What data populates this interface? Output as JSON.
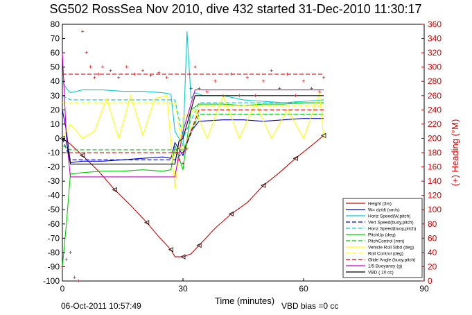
{
  "chart_data": {
    "type": "line",
    "title": "SG502 RossSea Nov 2010, dive 432 started 31-Dec-2010 11:30:17",
    "xlabel": "Time (minutes)",
    "ylabel": "",
    "y2label": "(+) Heading (°M)",
    "xlim": [
      0,
      90
    ],
    "ylim": [
      -100,
      80
    ],
    "y2lim": [
      0,
      360
    ],
    "xticks": [
      "0",
      "30",
      "60",
      "90"
    ],
    "yticks": [
      "-100",
      "-90",
      "-80",
      "-70",
      "-60",
      "-50",
      "-40",
      "-30",
      "-20",
      "-10",
      "0",
      "10",
      "20",
      "30",
      "40",
      "50",
      "60",
      "70",
      "80"
    ],
    "y2ticks": [
      "0",
      "20",
      "40",
      "60",
      "80",
      "100",
      "120",
      "140",
      "160",
      "180",
      "200",
      "220",
      "240",
      "260",
      "280",
      "300",
      "320",
      "340",
      "360"
    ],
    "legend_position": "bottom-right",
    "footer_left": "06-Oct-2011 10:57:49",
    "footer_right": "VBD bias =0 cc",
    "series": [
      {
        "name": "Height (3m)",
        "color": "#cc0000",
        "style": "solid",
        "x": [
          0,
          2,
          5,
          9,
          13,
          17,
          21,
          24,
          27,
          28,
          30,
          32,
          34,
          38,
          42,
          46,
          50,
          54,
          58,
          62,
          65
        ],
        "y": [
          0,
          -4,
          -12,
          -23,
          -36,
          -47,
          -59,
          -69,
          -78,
          -83,
          -83,
          -81,
          -75,
          -63,
          -53,
          -45,
          -33,
          -24,
          -14,
          -5,
          2
        ]
      },
      {
        "name": "W= dz/dt (cm/s)",
        "color": "#0000cc",
        "style": "solid",
        "x": [
          0,
          1,
          2,
          5,
          10,
          15,
          20,
          25,
          27,
          28,
          30,
          32,
          34,
          40,
          45,
          50,
          55,
          60,
          65
        ],
        "y": [
          20,
          5,
          -17,
          -16,
          -16,
          -15,
          -14,
          -13,
          -14,
          -3,
          -12,
          5,
          12,
          13,
          13,
          12,
          13,
          14,
          14
        ]
      },
      {
        "name": "Horiz Speed(W,pitch)",
        "color": "#00cccc",
        "style": "solid",
        "x": [
          0,
          1,
          2,
          5,
          10,
          15,
          20,
          25,
          27,
          28,
          29,
          30,
          31,
          32,
          33,
          35,
          40,
          45,
          50,
          55,
          60,
          65
        ],
        "y": [
          40,
          35,
          32,
          34,
          34,
          33,
          33,
          32,
          31,
          5,
          0,
          -5,
          75,
          28,
          32,
          30,
          30,
          27,
          26,
          25,
          26,
          27
        ]
      },
      {
        "name": "Vert Speed(buoy,pitch)",
        "color": "#0000cc",
        "style": "dashed",
        "x": [
          0,
          2,
          28,
          30,
          34,
          65
        ],
        "y": [
          0,
          -15,
          -15,
          -10,
          17,
          17
        ]
      },
      {
        "name": "Horiz Speed(buoy,pitch)",
        "color": "#00cccc",
        "style": "dashed",
        "x": [
          0,
          2,
          28,
          30,
          34,
          65
        ],
        "y": [
          30,
          27,
          27,
          0,
          25,
          25
        ]
      },
      {
        "name": "PitchUp (deg)",
        "color": "#00cc00",
        "style": "solid",
        "x": [
          0,
          1,
          2,
          5,
          10,
          15,
          20,
          25,
          27,
          28,
          30,
          32,
          34,
          40,
          45,
          50,
          55,
          60,
          65
        ],
        "y": [
          -90,
          -60,
          -25,
          -24,
          -23,
          -23,
          -22,
          -23,
          -22,
          -5,
          -22,
          20,
          24,
          24,
          23,
          24,
          24,
          25,
          25
        ]
      },
      {
        "name": "PitchControl (mm)",
        "color": "#00cc00",
        "style": "dashed",
        "x": [
          0,
          2,
          28,
          30,
          34,
          65
        ],
        "y": [
          -5,
          -8,
          -8,
          -8,
          17,
          17
        ]
      },
      {
        "name": "Vehicle Roll Stbd (deg)",
        "color": "#ffff00",
        "style": "solid",
        "x": [
          0,
          2,
          5,
          8,
          11,
          14,
          17,
          20,
          23,
          26,
          28,
          30,
          33,
          36,
          40,
          44,
          48,
          52,
          56,
          60,
          64,
          65
        ],
        "y": [
          0,
          10,
          0,
          5,
          28,
          0,
          30,
          2,
          28,
          30,
          -35,
          15,
          20,
          0,
          30,
          0,
          25,
          0,
          20,
          0,
          32,
          0
        ]
      },
      {
        "name": "Roll Control (deg)",
        "color": "#ffff00",
        "style": "dashed",
        "x": [
          0,
          2,
          28,
          30,
          34,
          65
        ],
        "y": [
          25,
          25,
          25,
          -10,
          23,
          23
        ]
      },
      {
        "name": "Glide Angle (buoy,pitch)",
        "color": "#cc0000",
        "style": "dashed",
        "x": [
          0,
          2,
          28,
          30,
          34,
          65
        ],
        "y": [
          -10,
          -10,
          -10,
          -10,
          20,
          20
        ]
      },
      {
        "name": "1/5 Buoyancy (g)",
        "color": "#cc00cc",
        "style": "solid",
        "x": [
          0,
          1,
          2,
          28,
          30,
          33,
          65
        ],
        "y": [
          60,
          0,
          -27,
          -27,
          5,
          34,
          34
        ]
      },
      {
        "name": "VBD ( 10 cc)",
        "color": "#000000",
        "style": "solid",
        "x": [
          0,
          1,
          2,
          28,
          29,
          30,
          33,
          65
        ],
        "y": [
          0,
          -2,
          -18,
          -18,
          -2,
          0,
          30,
          30
        ]
      }
    ],
    "heading": {
      "name": "Heading (°M)",
      "color": "#cc0000",
      "style": "dotted",
      "axis": "right",
      "mean_line": 290,
      "x": [
        0,
        1,
        2,
        3,
        4,
        5,
        6,
        7,
        8,
        9,
        10,
        12,
        14,
        16,
        18,
        20,
        22,
        24,
        26,
        28,
        29,
        30,
        31,
        32,
        33,
        34,
        36,
        38,
        40,
        42,
        44,
        46,
        48,
        50,
        52,
        54,
        56,
        58,
        60,
        62,
        64,
        65
      ],
      "y": [
        20,
        30,
        40,
        5,
        -30,
        350,
        320,
        300,
        285,
        290,
        300,
        295,
        285,
        300,
        290,
        295,
        288,
        292,
        285,
        180,
        170,
        165,
        185,
        270,
        300,
        270,
        265,
        280,
        260,
        290,
        260,
        285,
        260,
        280,
        295,
        270,
        290,
        260,
        280,
        270,
        265,
        285
      ]
    }
  }
}
